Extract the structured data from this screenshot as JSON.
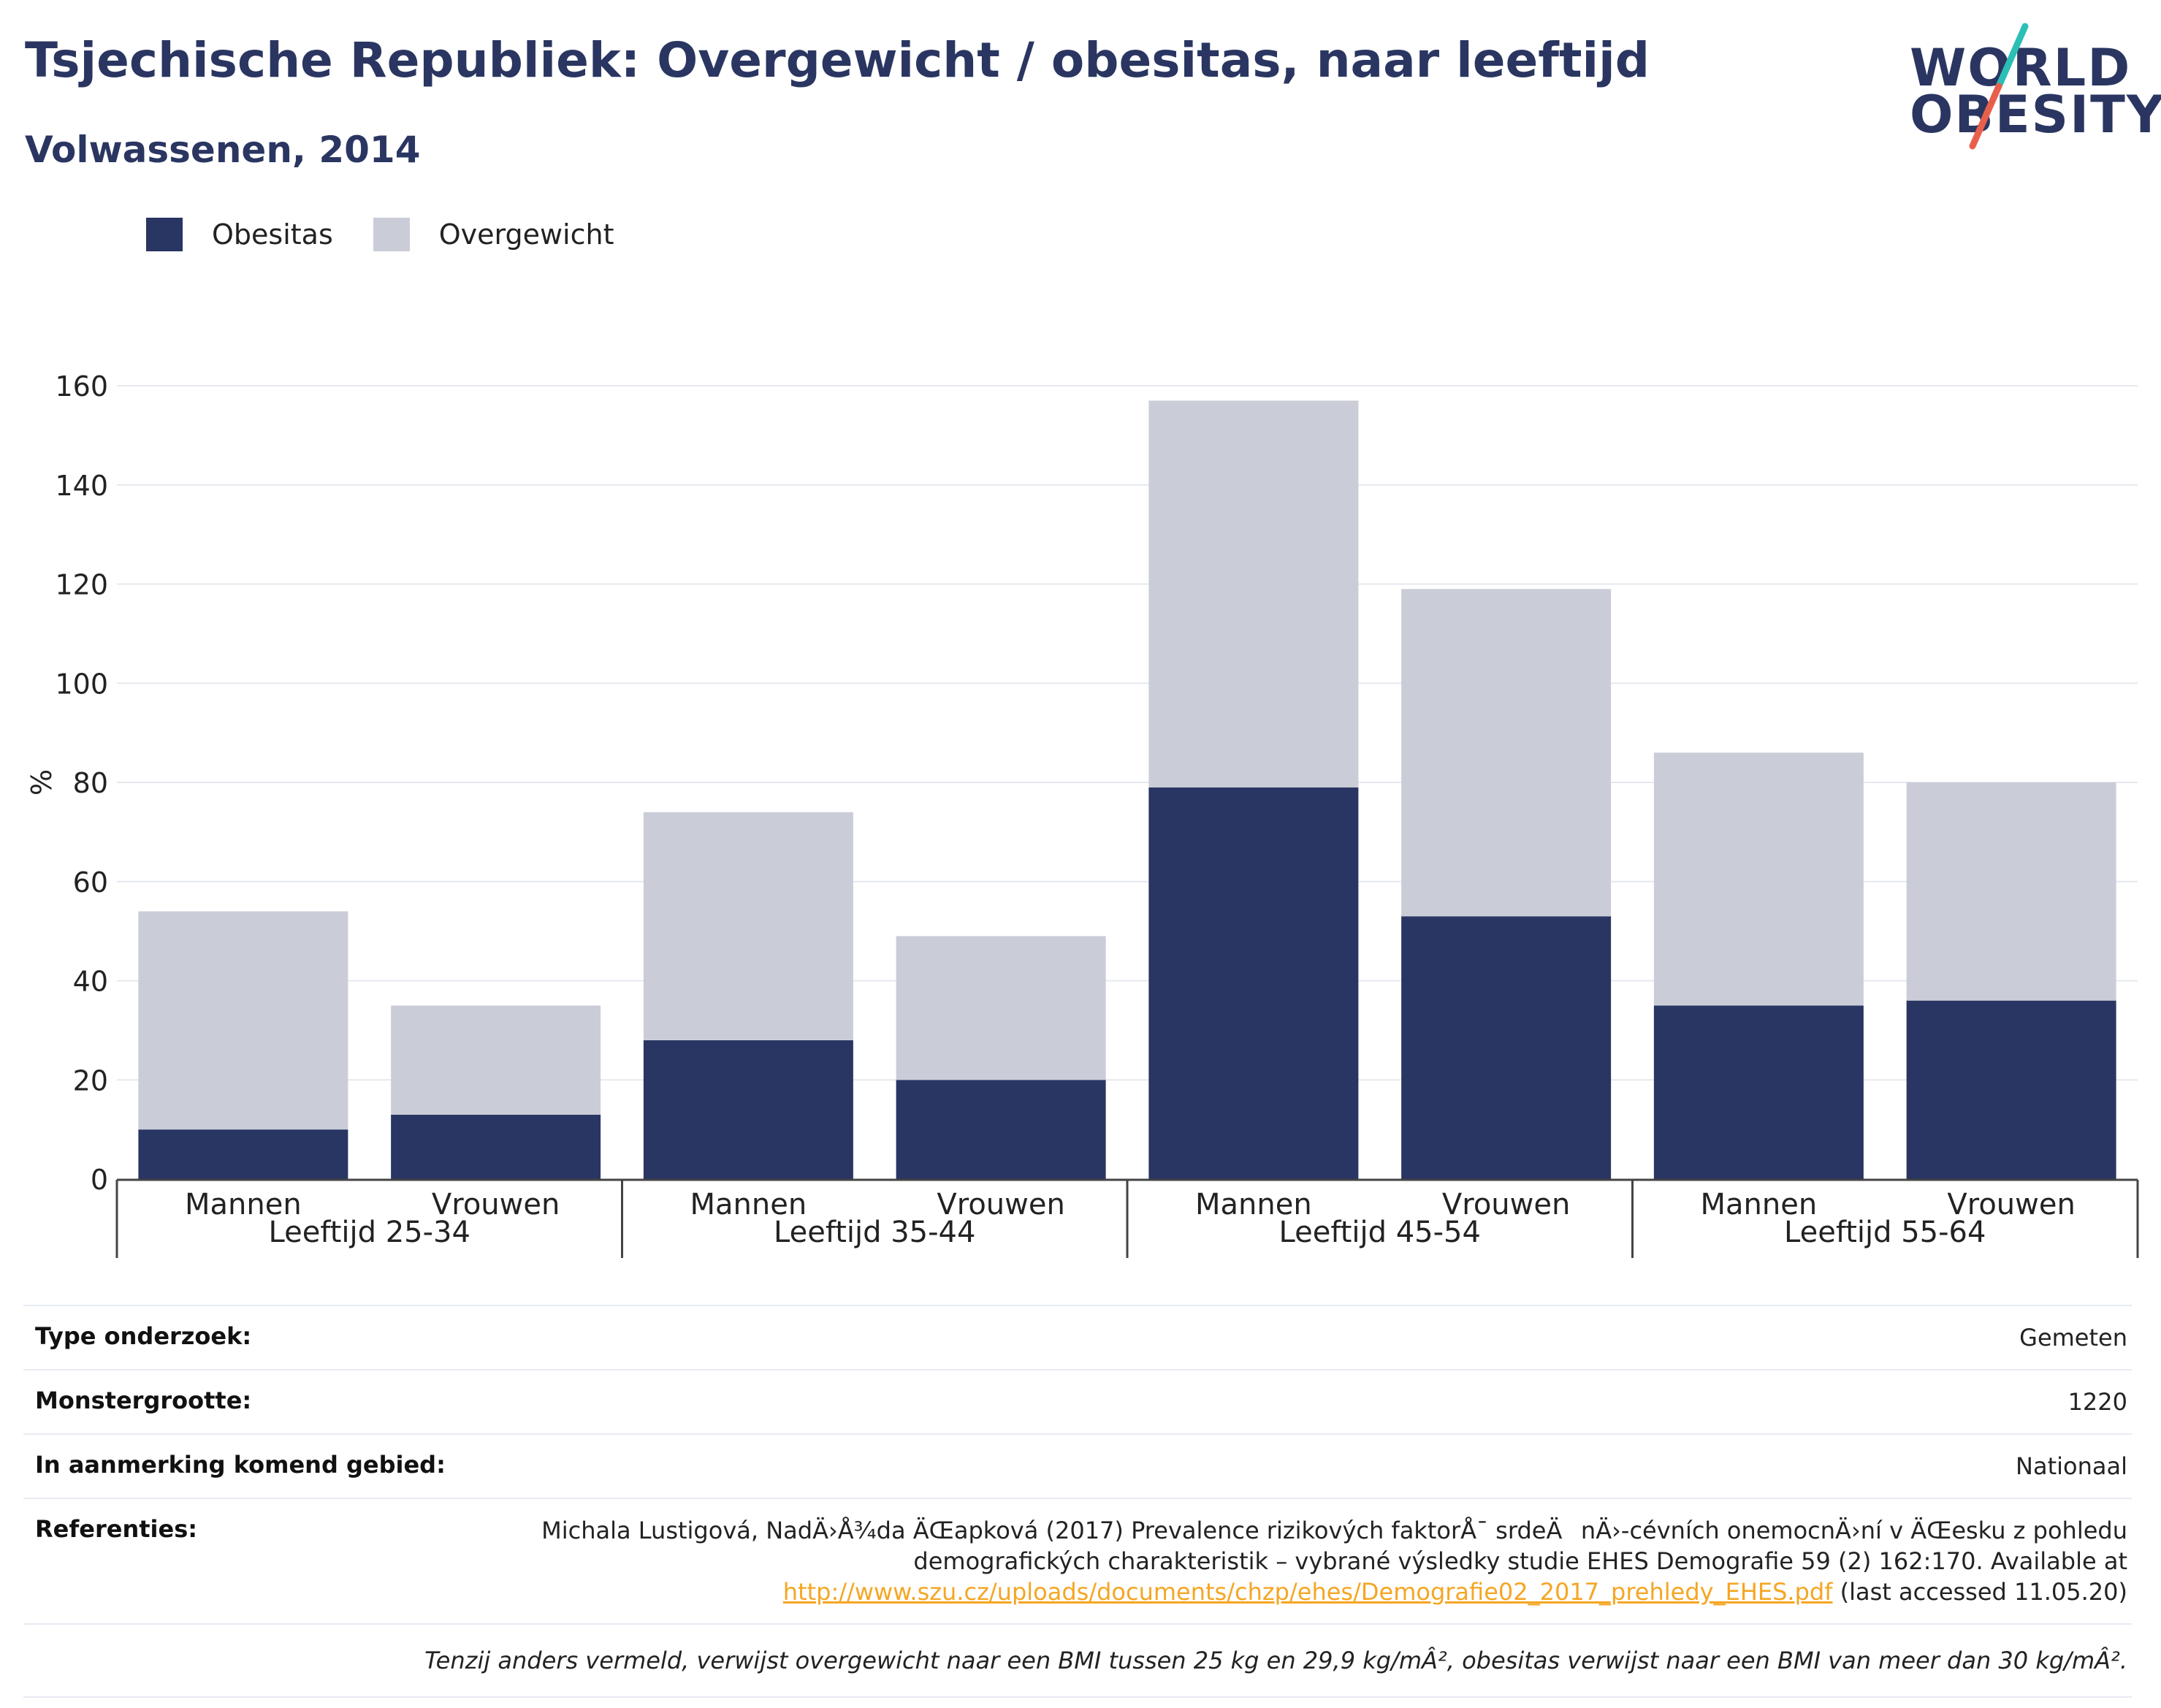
{
  "header": {
    "title": "Tsjechische Republiek: Overgewicht / obesitas, naar leeftijd",
    "subtitle": "Volwassenen, 2014",
    "logo_top": "WORLD",
    "logo_bottom": "OBESITY"
  },
  "colors": {
    "obesity": "#293562",
    "overweight": "#cacdd8",
    "logo_slash_teal": "#2bbfb6",
    "logo_slash_red": "#e8604c",
    "link": "#f5a623"
  },
  "chart_data": {
    "type": "bar",
    "stacked": true,
    "ylabel": "%",
    "ylim": [
      0,
      160
    ],
    "yticks": [
      0,
      20,
      40,
      60,
      80,
      100,
      120,
      140,
      160
    ],
    "grid": true,
    "legend_position": "top-left",
    "groups": [
      "Leeftijd 25-34",
      "Leeftijd 35-44",
      "Leeftijd 45-54",
      "Leeftijd 55-64"
    ],
    "categories": [
      "Mannen",
      "Vrouwen",
      "Mannen",
      "Vrouwen",
      "Mannen",
      "Vrouwen",
      "Mannen",
      "Vrouwen"
    ],
    "series": [
      {
        "name": "Obesitas",
        "values": [
          10,
          13,
          28,
          20,
          79,
          53,
          35,
          36
        ]
      },
      {
        "name": "Overgewicht",
        "values": [
          44,
          22,
          46,
          29,
          78,
          66,
          51,
          44
        ]
      }
    ]
  },
  "meta": {
    "rows": [
      {
        "key": "Type onderzoek:",
        "value": "Gemeten"
      },
      {
        "key": "Monstergrootte:",
        "value": "1220"
      },
      {
        "key": "In aanmerking komend gebied:",
        "value": "Nationaal"
      }
    ],
    "references": {
      "key": "Referenties:",
      "line1": "Michala Lustigová, NadÄ›Å¾da ÄŒapková (2017) Prevalence rizikových faktorÅ¯ srdeÄnÄ›-cévních onemocnÄ›ní v ÄŒesku z pohledu",
      "line2": "demografických charakteristik – vybrané výsledky studie EHES Demografie 59 (2) 162:170. Available at",
      "link": "http://www.szu.cz/uploads/documents/chzp/ehes/Demografie02_2017_prehledy_EHES.pdf",
      "after_link": " (last accessed 11.05.20)"
    },
    "footnote": "Tenzij anders vermeld, verwijst overgewicht naar een BMI tussen 25 kg en 29,9 kg/mÂ², obesitas verwijst naar een BMI van meer dan 30 kg/mÂ²."
  }
}
